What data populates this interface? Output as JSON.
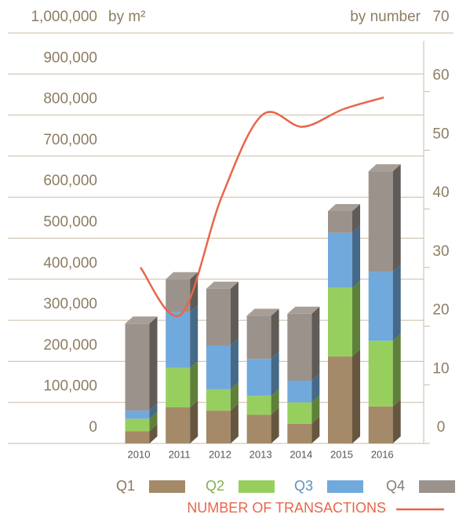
{
  "chart_data": {
    "type": "bar",
    "stacked": true,
    "y_label": "by m²",
    "y2_label": "by number",
    "categories": [
      "2010",
      "2011",
      "2012",
      "2013",
      "2014",
      "2015",
      "2016"
    ],
    "series": [
      {
        "name": "Q1",
        "color": "#a48a68",
        "values": [
          30000,
          88000,
          80000,
          70000,
          48000,
          212000,
          90000
        ]
      },
      {
        "name": "Q2",
        "color": "#97cf5e",
        "values": [
          30000,
          96000,
          52000,
          46000,
          52000,
          167000,
          160000
        ]
      },
      {
        "name": "Q3",
        "color": "#70a9dc",
        "values": [
          20000,
          136000,
          107000,
          90000,
          53000,
          134000,
          168000
        ]
      },
      {
        "name": "Q4",
        "color": "#9b928c",
        "values": [
          212000,
          80000,
          138000,
          105000,
          163000,
          53000,
          245000
        ]
      },
      {
        "name": "NUMBER OF TRANSACTIONS",
        "type": "line",
        "axis": "y2",
        "color": "#e8664a",
        "values": [
          30,
          22,
          42,
          56,
          54,
          57,
          59
        ]
      }
    ],
    "ylim": [
      0,
      1000000
    ],
    "yticks": [
      0,
      {
        "value": 100000,
        "label": "100,000"
      },
      {
        "value": 200000,
        "label": "200,000"
      },
      {
        "value": 300000,
        "label": "300,000"
      },
      {
        "value": 400000,
        "label": "400,000"
      },
      {
        "value": 500000,
        "label": "500,000"
      },
      {
        "value": 600000,
        "label": "600,000"
      },
      {
        "value": 700000,
        "label": "700,000"
      },
      {
        "value": 800000,
        "label": "800,000"
      },
      {
        "value": 900000,
        "label": "900,000"
      },
      {
        "value": 1000000,
        "label": "1,000,000"
      }
    ],
    "y2lim": [
      0,
      70
    ],
    "y2ticks": [
      0,
      10,
      20,
      30,
      40,
      50,
      60,
      70
    ],
    "grid": true
  }
}
